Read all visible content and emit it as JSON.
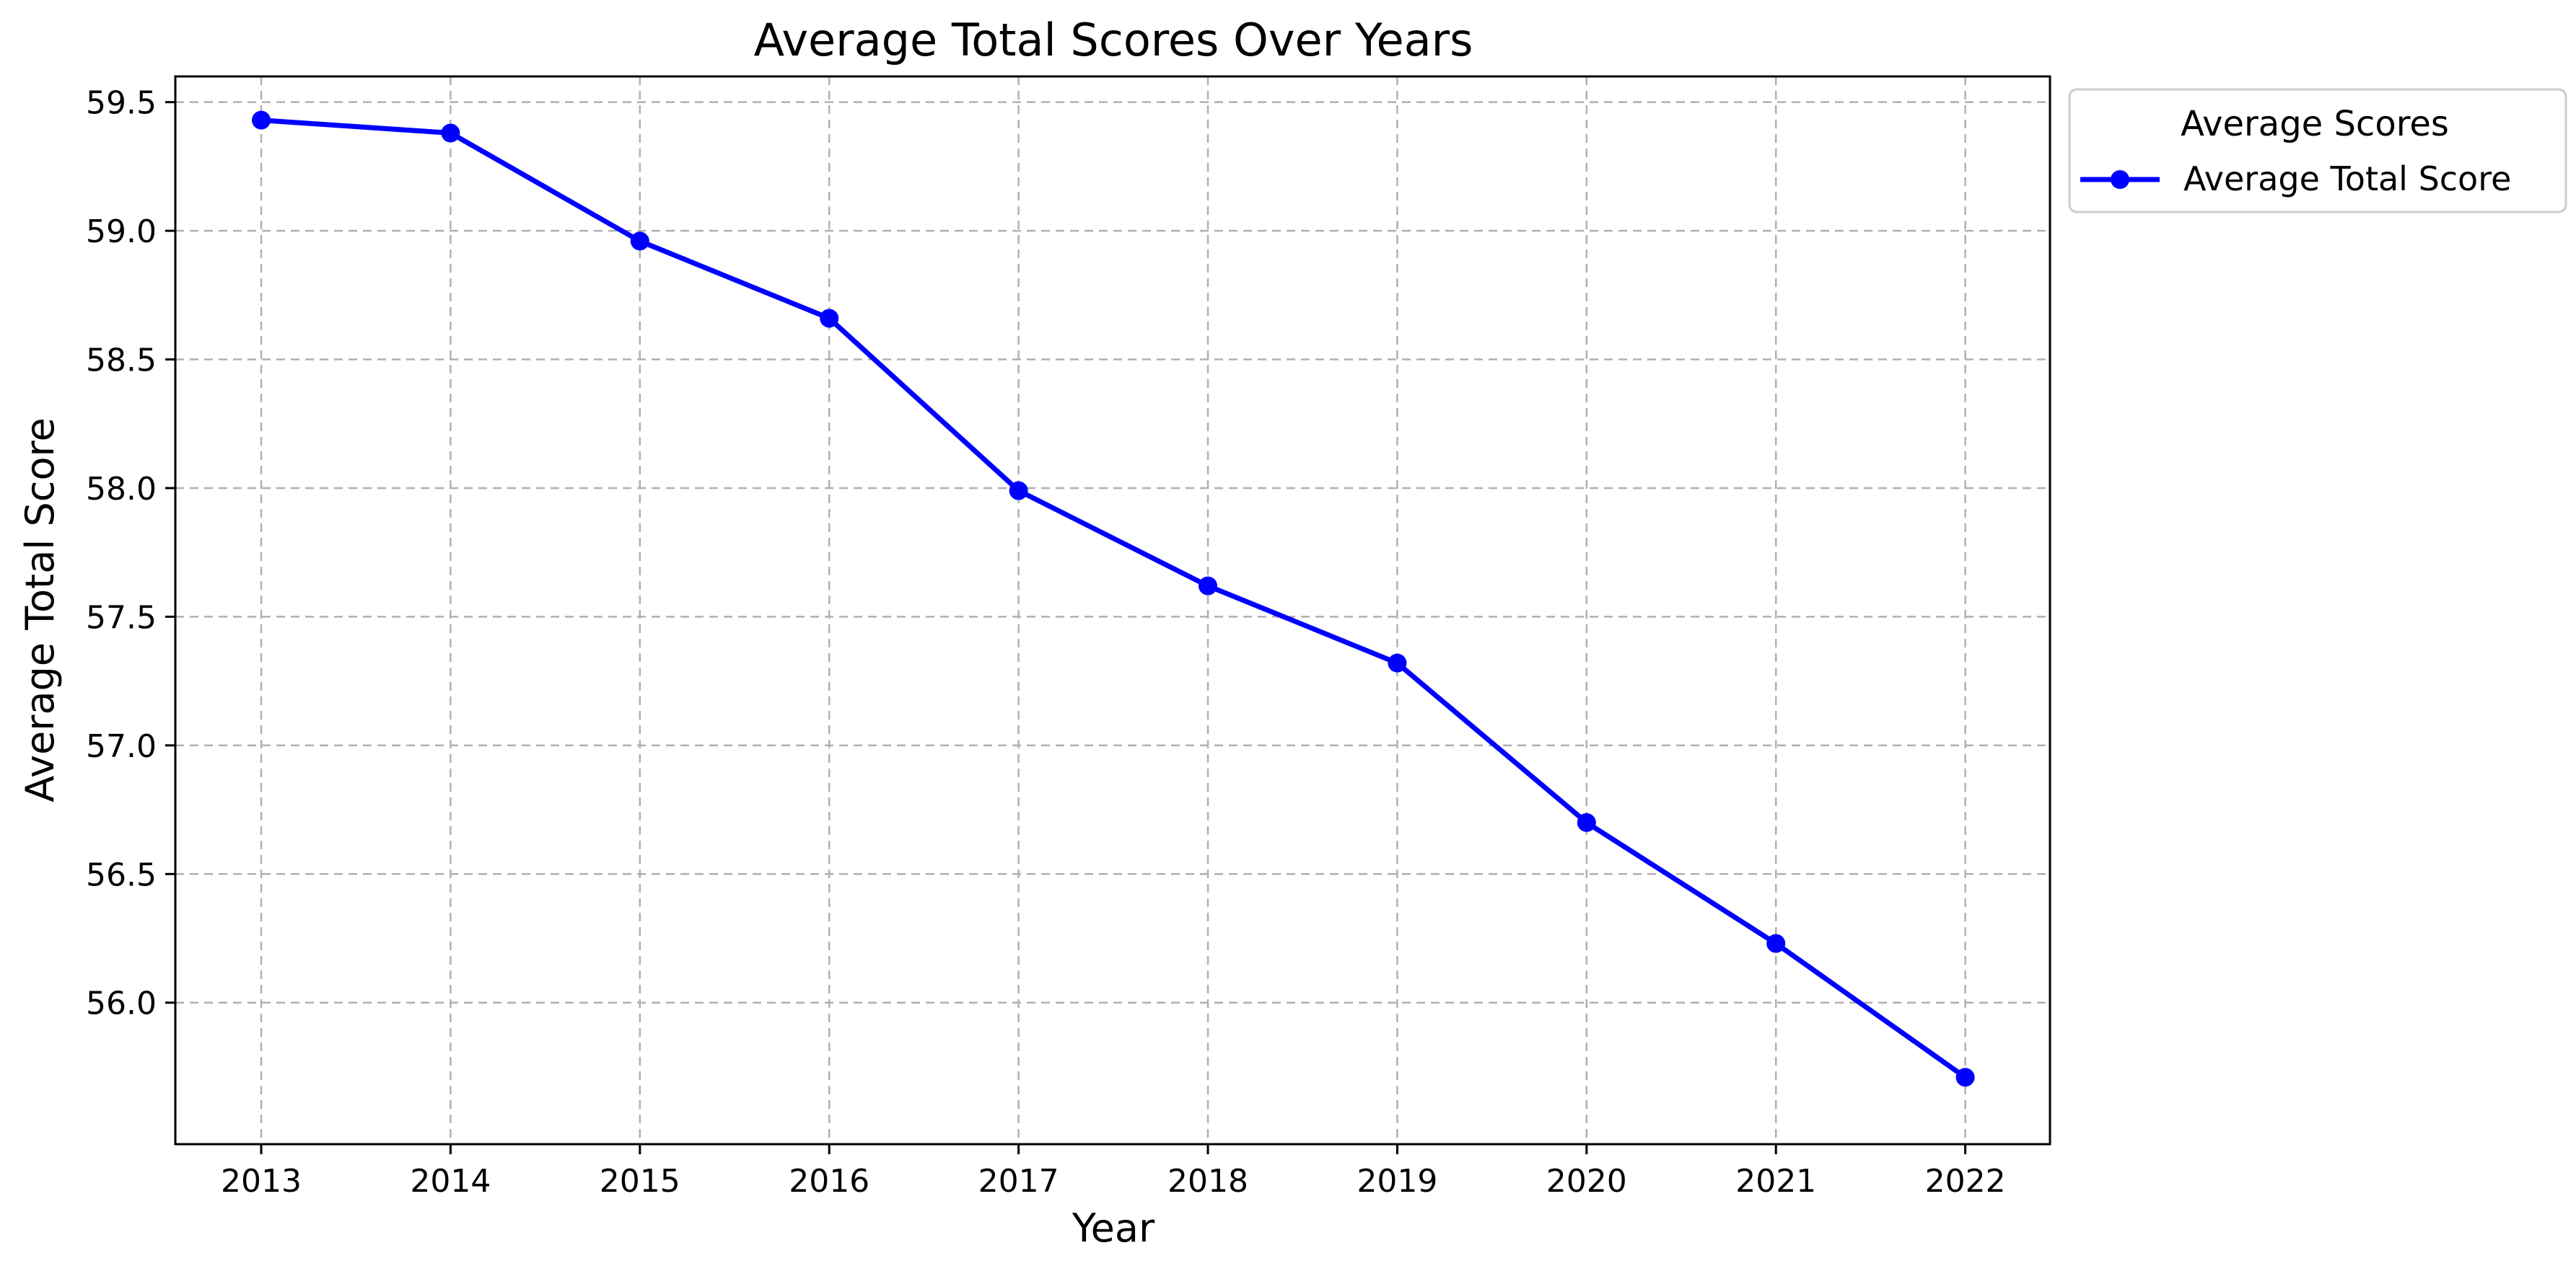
{
  "chart_data": {
    "type": "line",
    "title": "Average Total Scores Over Years",
    "xlabel": "Year",
    "ylabel": "Average Total Score",
    "x": [
      "2013",
      "2014",
      "2015",
      "2016",
      "2017",
      "2018",
      "2019",
      "2020",
      "2021",
      "2022"
    ],
    "y_ticks": [
      "56.0",
      "56.5",
      "57.0",
      "57.5",
      "58.0",
      "58.5",
      "59.0",
      "59.5"
    ],
    "ylim": [
      55.45,
      59.6
    ],
    "grid": true,
    "legend": {
      "title": "Average Scores",
      "placement": "outside-top-right"
    },
    "series": [
      {
        "name": "Average Total Score",
        "color": "#0000ff",
        "marker": "circle",
        "values": [
          59.43,
          59.38,
          58.96,
          58.66,
          57.99,
          57.62,
          57.32,
          56.7,
          56.23,
          55.71
        ]
      }
    ]
  }
}
